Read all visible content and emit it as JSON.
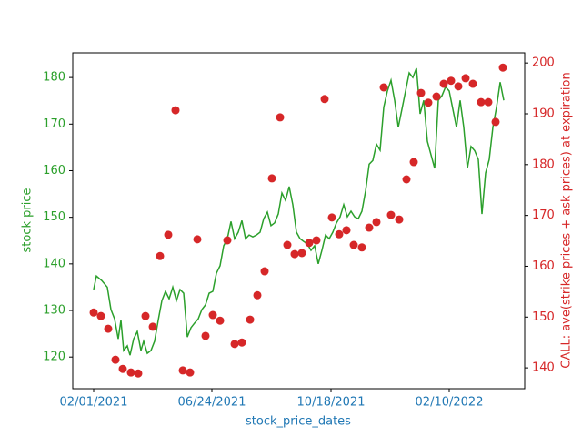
{
  "chart_data": {
    "type": "line",
    "x_label": "stock_price_dates",
    "y_label": "stock price",
    "y2_label": "CALL: ave(strike prices + ask prices) at expiration",
    "x_axis_color": "#1f77b4",
    "y_axis_color": "#2ca02c",
    "y2_axis_color": "#d62728",
    "grid": false,
    "xlim": [
      -23,
      474
    ],
    "xticks": [
      {
        "value": 0,
        "label": "02/01/2021"
      },
      {
        "value": 130,
        "label": "06/24/2021"
      },
      {
        "value": 261,
        "label": "10/18/2021"
      },
      {
        "value": 391,
        "label": "02/10/2022"
      }
    ],
    "ylim": [
      113.2,
      185.3
    ],
    "yticks": [
      120,
      130,
      140,
      150,
      160,
      170,
      180
    ],
    "y2lim": [
      135.9,
      202.0
    ],
    "y2ticks": [
      140,
      150,
      160,
      170,
      180,
      190,
      200
    ],
    "series": [
      {
        "type": "line",
        "color": "#2ca02c",
        "x": [
          0,
          3,
          9,
          15,
          19,
          23,
          27,
          30,
          33,
          37,
          40,
          44,
          48,
          52,
          55,
          59,
          63,
          67,
          71,
          75,
          79,
          83,
          87,
          91,
          95,
          99,
          103,
          107,
          111,
          115,
          119,
          123,
          127,
          131,
          135,
          139,
          143,
          147,
          151,
          155,
          159,
          163,
          167,
          171,
          175,
          179,
          183,
          187,
          191,
          195,
          199,
          203,
          207,
          211,
          215,
          219,
          223,
          227,
          231,
          235,
          239,
          243,
          247,
          251,
          255,
          259,
          263,
          267,
          271,
          275,
          279,
          283,
          287,
          291,
          295,
          299,
          303,
          307,
          311,
          315,
          319,
          323,
          327,
          331,
          335,
          339,
          343,
          347,
          351,
          355,
          359,
          363,
          367,
          371,
          375,
          379,
          383,
          387,
          391,
          395,
          399,
          403,
          407,
          411,
          415,
          419,
          423,
          427,
          431,
          435,
          439,
          443,
          447,
          451
        ],
        "values": [
          134.5,
          137.4,
          136.4,
          135,
          130.2,
          128.2,
          123.9,
          127.9,
          121.4,
          122.4,
          120.4,
          123.9,
          125.5,
          121.4,
          123.4,
          120.8,
          121.4,
          123.4,
          127.9,
          132.1,
          134.1,
          132.5,
          135,
          132.1,
          134.5,
          133.7,
          124.3,
          126.3,
          127.3,
          128.2,
          130.2,
          131.2,
          133.7,
          134.1,
          138,
          139.6,
          143.9,
          145.4,
          149.1,
          145.4,
          146.8,
          149.3,
          145.4,
          146.2,
          145.8,
          146.2,
          146.8,
          149.7,
          151.1,
          148.2,
          148.8,
          150.7,
          155.2,
          153.6,
          156.6,
          152.7,
          146.8,
          145.4,
          144.8,
          144.3,
          142.9,
          143.9,
          140,
          142.9,
          146.2,
          145.4,
          146.8,
          148.8,
          150.1,
          152.7,
          150.1,
          151.3,
          150.1,
          149.7,
          151.3,
          155.6,
          161.4,
          162.2,
          165.7,
          164.4,
          173.6,
          177.1,
          179.4,
          175.1,
          169.3,
          173.2,
          177.1,
          181,
          180,
          182,
          172.2,
          175.1,
          166.3,
          163.4,
          160.5,
          175.1,
          176.1,
          178,
          177.1,
          173.2,
          169.3,
          175.1,
          169.3,
          160.5,
          165.2,
          164.3,
          162.4,
          150.7,
          159.5,
          162.4,
          169.3,
          173.6,
          179,
          175.1
        ]
      },
      {
        "type": "scatter",
        "color": "#d62728",
        "axis": "y2",
        "x": [
          0,
          8,
          16,
          24,
          32,
          41,
          49,
          57,
          65,
          73,
          82,
          90,
          98,
          106,
          114,
          123,
          131,
          139,
          147,
          155,
          163,
          172,
          180,
          188,
          196,
          205,
          213,
          221,
          229,
          237,
          245,
          254,
          262,
          270,
          278,
          286,
          295,
          303,
          311,
          319,
          327,
          336,
          344,
          352,
          360,
          368,
          377,
          385,
          393,
          401,
          409,
          417,
          426,
          434,
          442,
          450
        ],
        "values": [
          150.9,
          150.2,
          147.7,
          141.6,
          139.8,
          139.1,
          138.9,
          150.2,
          148.1,
          162,
          166.2,
          190.7,
          139.5,
          139.1,
          165.3,
          146.3,
          150.4,
          149.3,
          165.1,
          144.7,
          145,
          149.5,
          154.3,
          159,
          177.3,
          189.3,
          164.2,
          162.4,
          162.6,
          164.6,
          165.1,
          192.9,
          169.6,
          166.3,
          167.1,
          164.2,
          163.7,
          167.6,
          168.7,
          195.2,
          170.1,
          169.2,
          177.1,
          180.5,
          194.1,
          192.2,
          193.4,
          195.9,
          196.5,
          195.4,
          197,
          195.9,
          192.3,
          192.3,
          188.4,
          199.1
        ]
      }
    ]
  }
}
